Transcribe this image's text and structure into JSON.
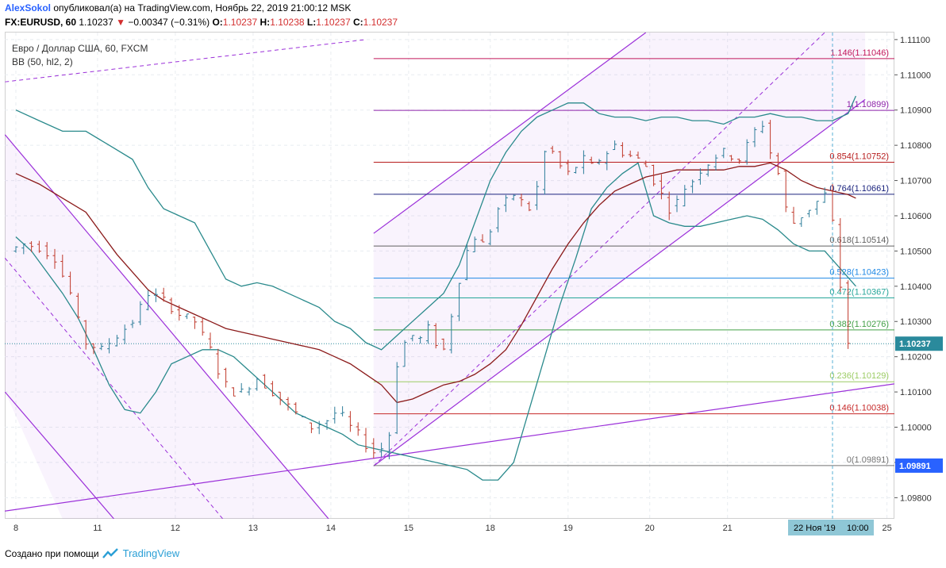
{
  "header": {
    "author": "AlexSokol",
    "published_text": " опубликовал(а) на TradingView.com, Ноябрь 22, 2019 21:00:12 MSK",
    "symbol": "FX:EURUSD, 60",
    "last_price": "1.10237",
    "change_arrow": "▼",
    "change": "−0.00347 (−0.31%)",
    "o_label": "O:",
    "o_value": "1.10237",
    "h_label": "H:",
    "h_value": "1.10238",
    "l_label": "L:",
    "l_value": "1.10237",
    "c_label": "C:",
    "c_value": "1.10237"
  },
  "legend": {
    "title": "Евро / Доллар США, 60, FXCM",
    "indicator": "BB (50, hl2, 2)"
  },
  "footer": {
    "created_with": "Создано при помощи",
    "brand": "TradingView"
  },
  "colors": {
    "candle_up": "#2e7d9a",
    "candle_down": "#c0392b",
    "bb_band": "#2a8a8c",
    "bb_basis": "#8b1a1a",
    "channel": "#9b30d9",
    "price_badge": "#2a8a9c",
    "low_badge": "#2962ff"
  },
  "chart_data": {
    "type": "candlestick",
    "symbol": "FX:EURUSD",
    "interval": "60",
    "ylim": [
      1.0974,
      1.1112
    ],
    "y_ticks": [
      "1.09800",
      "1.09900",
      "1.10000",
      "1.10100",
      "1.10200",
      "1.10300",
      "1.10400",
      "1.10500",
      "1.10600",
      "1.10700",
      "1.10800",
      "1.10900",
      "1.11000",
      "1.11100"
    ],
    "x_ticks": [
      {
        "label": "8",
        "x": 0
      },
      {
        "label": "11",
        "x": 10.5
      },
      {
        "label": "12",
        "x": 20.5
      },
      {
        "label": "13",
        "x": 30.5
      },
      {
        "label": "14",
        "x": 40.5
      },
      {
        "label": "15",
        "x": 50.5
      },
      {
        "label": "18",
        "x": 61
      },
      {
        "label": "19",
        "x": 71
      },
      {
        "label": "20",
        "x": 81.5
      },
      {
        "label": "21",
        "x": 91.5
      },
      {
        "label": "25",
        "x": 112
      }
    ],
    "crosshair_date_label": "22 Ноя '19",
    "crosshair_time_label": "10:00",
    "crosshair_x": 105,
    "last_price": "1.10237",
    "last_price_value": 1.10237,
    "low_price_badge": "1.09891",
    "fibonacci": [
      {
        "level": "1.146",
        "price": 1.11046,
        "label": "1.146(1.11046)",
        "color": "#c2185b"
      },
      {
        "level": "1",
        "price": 1.10899,
        "label": "1(1.10899)",
        "color": "#8e24aa"
      },
      {
        "level": "0.854",
        "price": 1.10752,
        "label": "0.854(1.10752)",
        "color": "#b71c1c"
      },
      {
        "level": "0.764",
        "price": 1.10661,
        "label": "0.764(1.10661)",
        "color": "#1a237e"
      },
      {
        "level": "0.618",
        "price": 1.10514,
        "label": "0.618(1.10514)",
        "color": "#616161"
      },
      {
        "level": "0.528",
        "price": 1.10423,
        "label": "0.528(1.10423)",
        "color": "#1e88e5"
      },
      {
        "level": "0.472",
        "price": 1.10367,
        "label": "0.472(1.10367)",
        "color": "#26a69a"
      },
      {
        "level": "0.382",
        "price": 1.10276,
        "label": "0.382(1.10276)",
        "color": "#43a047"
      },
      {
        "level": "0.236",
        "price": 1.10129,
        "label": "0.236(1.10129)",
        "color": "#9ccc65"
      },
      {
        "level": "0.146",
        "price": 1.10038,
        "label": "0.146(1.10038)",
        "color": "#c62828"
      },
      {
        "level": "0",
        "price": 1.09891,
        "label": "0(1.09891)",
        "color": "#757575"
      }
    ],
    "bb_upper": [
      [
        0,
        1.109
      ],
      [
        3,
        1.1087
      ],
      [
        6,
        1.1084
      ],
      [
        9,
        1.1084
      ],
      [
        12,
        1.108
      ],
      [
        15,
        1.1076
      ],
      [
        17,
        1.1068
      ],
      [
        19,
        1.1062
      ],
      [
        21,
        1.106
      ],
      [
        23,
        1.1058
      ],
      [
        25,
        1.105
      ],
      [
        27,
        1.1042
      ],
      [
        29,
        1.104
      ],
      [
        31,
        1.1041
      ],
      [
        33,
        1.104
      ],
      [
        35,
        1.1038
      ],
      [
        37,
        1.1036
      ],
      [
        39,
        1.1034
      ],
      [
        41,
        1.103
      ],
      [
        43,
        1.1028
      ],
      [
        45,
        1.1024
      ],
      [
        47,
        1.1022
      ],
      [
        49,
        1.1026
      ],
      [
        51,
        1.103
      ],
      [
        53,
        1.1034
      ],
      [
        55,
        1.1038
      ],
      [
        57,
        1.1046
      ],
      [
        59,
        1.1058
      ],
      [
        61,
        1.107
      ],
      [
        63,
        1.1078
      ],
      [
        65,
        1.1084
      ],
      [
        67,
        1.1088
      ],
      [
        69,
        1.109
      ],
      [
        71,
        1.1092
      ],
      [
        73,
        1.1092
      ],
      [
        75,
        1.1089
      ],
      [
        77,
        1.1088
      ],
      [
        79,
        1.1088
      ],
      [
        81,
        1.1087
      ],
      [
        83,
        1.1088
      ],
      [
        85,
        1.1088
      ],
      [
        87,
        1.1087
      ],
      [
        89,
        1.1087
      ],
      [
        91,
        1.1086
      ],
      [
        93,
        1.1088
      ],
      [
        95,
        1.1088
      ],
      [
        97,
        1.1089
      ],
      [
        99,
        1.1088
      ],
      [
        101,
        1.1088
      ],
      [
        103,
        1.1087
      ],
      [
        105,
        1.1087
      ],
      [
        107,
        1.1089
      ],
      [
        108,
        1.1094
      ]
    ],
    "bb_basis": [
      [
        0,
        1.1072
      ],
      [
        3,
        1.1069
      ],
      [
        6,
        1.1065
      ],
      [
        9,
        1.1061
      ],
      [
        11,
        1.1055
      ],
      [
        13,
        1.1049
      ],
      [
        15,
        1.1044
      ],
      [
        17,
        1.1039
      ],
      [
        19,
        1.1036
      ],
      [
        21,
        1.1034
      ],
      [
        23,
        1.1032
      ],
      [
        25,
        1.103
      ],
      [
        27,
        1.1028
      ],
      [
        29,
        1.1027
      ],
      [
        31,
        1.1026
      ],
      [
        33,
        1.1025
      ],
      [
        35,
        1.1024
      ],
      [
        37,
        1.1023
      ],
      [
        39,
        1.1022
      ],
      [
        41,
        1.102
      ],
      [
        43,
        1.1018
      ],
      [
        45,
        1.1015
      ],
      [
        47,
        1.1012
      ],
      [
        49,
        1.1007
      ],
      [
        51,
        1.1008
      ],
      [
        53,
        1.101
      ],
      [
        55,
        1.1012
      ],
      [
        57,
        1.1013
      ],
      [
        59,
        1.1015
      ],
      [
        61,
        1.1018
      ],
      [
        63,
        1.1022
      ],
      [
        65,
        1.1029
      ],
      [
        67,
        1.1037
      ],
      [
        69,
        1.1045
      ],
      [
        71,
        1.1052
      ],
      [
        73,
        1.1058
      ],
      [
        75,
        1.1063
      ],
      [
        77,
        1.1067
      ],
      [
        79,
        1.1069
      ],
      [
        81,
        1.1071
      ],
      [
        83,
        1.1072
      ],
      [
        85,
        1.1073
      ],
      [
        87,
        1.1073
      ],
      [
        89,
        1.1073
      ],
      [
        91,
        1.1073
      ],
      [
        93,
        1.1074
      ],
      [
        95,
        1.1074
      ],
      [
        97,
        1.1075
      ],
      [
        99,
        1.1073
      ],
      [
        101,
        1.107
      ],
      [
        103,
        1.1068
      ],
      [
        105,
        1.1067
      ],
      [
        107,
        1.1066
      ],
      [
        108,
        1.1065
      ]
    ],
    "bb_lower": [
      [
        0,
        1.1054
      ],
      [
        2,
        1.105
      ],
      [
        4,
        1.1044
      ],
      [
        6,
        1.1038
      ],
      [
        8,
        1.1031
      ],
      [
        10,
        1.1022
      ],
      [
        12,
        1.1012
      ],
      [
        14,
        1.1005
      ],
      [
        16,
        1.1004
      ],
      [
        18,
        1.101
      ],
      [
        20,
        1.1018
      ],
      [
        22,
        1.102
      ],
      [
        24,
        1.1022
      ],
      [
        26,
        1.1022
      ],
      [
        28,
        1.102
      ],
      [
        30,
        1.1016
      ],
      [
        32,
        1.1012
      ],
      [
        34,
        1.1008
      ],
      [
        36,
        1.1004
      ],
      [
        38,
        1.1002
      ],
      [
        40,
        1.1
      ],
      [
        42,
        1.0998
      ],
      [
        44,
        1.0995
      ],
      [
        46,
        1.0994
      ],
      [
        48,
        1.0993
      ],
      [
        50,
        1.0992
      ],
      [
        52,
        1.0991
      ],
      [
        54,
        1.099
      ],
      [
        56,
        1.0989
      ],
      [
        58,
        1.0988
      ],
      [
        60,
        1.0985
      ],
      [
        62,
        1.0985
      ],
      [
        64,
        1.099
      ],
      [
        66,
        1.1005
      ],
      [
        68,
        1.102
      ],
      [
        70,
        1.1035
      ],
      [
        72,
        1.1048
      ],
      [
        74,
        1.1062
      ],
      [
        76,
        1.1068
      ],
      [
        78,
        1.1072
      ],
      [
        80,
        1.1075
      ],
      [
        82,
        1.106
      ],
      [
        84,
        1.1058
      ],
      [
        86,
        1.1057
      ],
      [
        88,
        1.1057
      ],
      [
        90,
        1.1058
      ],
      [
        92,
        1.1059
      ],
      [
        94,
        1.106
      ],
      [
        96,
        1.1059
      ],
      [
        98,
        1.1056
      ],
      [
        100,
        1.1052
      ],
      [
        102,
        1.105
      ],
      [
        104,
        1.105
      ],
      [
        106,
        1.1045
      ],
      [
        108,
        1.104
      ]
    ],
    "candles_note": "approximate hourly OHLC path read from chart",
    "close_path": [
      [
        0,
        1.105
      ],
      [
        2,
        1.1052
      ],
      [
        4,
        1.1051
      ],
      [
        6,
        1.1048
      ],
      [
        8,
        1.1038
      ],
      [
        9,
        1.103
      ],
      [
        10,
        1.1024
      ],
      [
        11,
        1.1023
      ],
      [
        12,
        1.1022
      ],
      [
        13,
        1.1024
      ],
      [
        14,
        1.1026
      ],
      [
        15,
        1.1028
      ],
      [
        16,
        1.103
      ],
      [
        17,
        1.1034
      ],
      [
        18,
        1.1038
      ],
      [
        19,
        1.1037
      ],
      [
        20,
        1.1036
      ],
      [
        21,
        1.1034
      ],
      [
        22,
        1.1032
      ],
      [
        23,
        1.1031
      ],
      [
        24,
        1.103
      ],
      [
        25,
        1.1026
      ],
      [
        26,
        1.1022
      ],
      [
        27,
        1.1016
      ],
      [
        28,
        1.1012
      ],
      [
        29,
        1.101
      ],
      [
        30,
        1.101
      ],
      [
        31,
        1.1012
      ],
      [
        32,
        1.1014
      ],
      [
        33,
        1.1012
      ],
      [
        34,
        1.101
      ],
      [
        35,
        1.1008
      ],
      [
        36,
        1.1006
      ],
      [
        37,
        1.1004
      ],
      [
        38,
        1.1002
      ],
      [
        39,
        1.1
      ],
      [
        40,
        1.1001
      ],
      [
        41,
        1.1002
      ],
      [
        42,
        1.1004
      ],
      [
        43,
        1.1003
      ],
      [
        44,
        1.1
      ],
      [
        45,
        1.0998
      ],
      [
        46,
        1.0995
      ],
      [
        47,
        1.0993
      ],
      [
        48,
        1.0994
      ],
      [
        49,
        1.0998
      ],
      [
        50,
        1.1018
      ],
      [
        51,
        1.1024
      ],
      [
        52,
        1.1026
      ],
      [
        53,
        1.1025
      ],
      [
        54,
        1.1028
      ],
      [
        55,
        1.1024
      ],
      [
        56,
        1.1022
      ],
      [
        57,
        1.1032
      ],
      [
        58,
        1.1042
      ],
      [
        59,
        1.105
      ],
      [
        60,
        1.1054
      ],
      [
        61,
        1.1052
      ],
      [
        62,
        1.1056
      ],
      [
        63,
        1.1062
      ],
      [
        64,
        1.1064
      ],
      [
        65,
        1.1066
      ],
      [
        66,
        1.1064
      ],
      [
        67,
        1.1062
      ],
      [
        68,
        1.1068
      ],
      [
        69,
        1.1078
      ],
      [
        70,
        1.1078
      ],
      [
        71,
        1.1074
      ],
      [
        72,
        1.1072
      ],
      [
        73,
        1.1074
      ],
      [
        74,
        1.1076
      ],
      [
        75,
        1.1074
      ],
      [
        76,
        1.1076
      ],
      [
        77,
        1.1078
      ],
      [
        78,
        1.108
      ],
      [
        79,
        1.1078
      ],
      [
        80,
        1.1077
      ],
      [
        81,
        1.1076
      ],
      [
        82,
        1.1074
      ],
      [
        83,
        1.107
      ],
      [
        84,
        1.1066
      ],
      [
        85,
        1.1062
      ],
      [
        86,
        1.1064
      ],
      [
        87,
        1.1068
      ],
      [
        88,
        1.107
      ],
      [
        89,
        1.1073
      ],
      [
        90,
        1.1075
      ],
      [
        91,
        1.1077
      ],
      [
        92,
        1.1078
      ],
      [
        93,
        1.1077
      ],
      [
        94,
        1.1076
      ],
      [
        95,
        1.108
      ],
      [
        96,
        1.1084
      ],
      [
        97,
        1.1086
      ],
      [
        98,
        1.1078
      ],
      [
        99,
        1.1072
      ],
      [
        100,
        1.1062
      ],
      [
        101,
        1.1058
      ],
      [
        102,
        1.106
      ],
      [
        103,
        1.1062
      ],
      [
        104,
        1.1064
      ],
      [
        105,
        1.1066
      ],
      [
        106,
        1.1058
      ],
      [
        107,
        1.104
      ],
      [
        108,
        1.1024
      ]
    ]
  }
}
